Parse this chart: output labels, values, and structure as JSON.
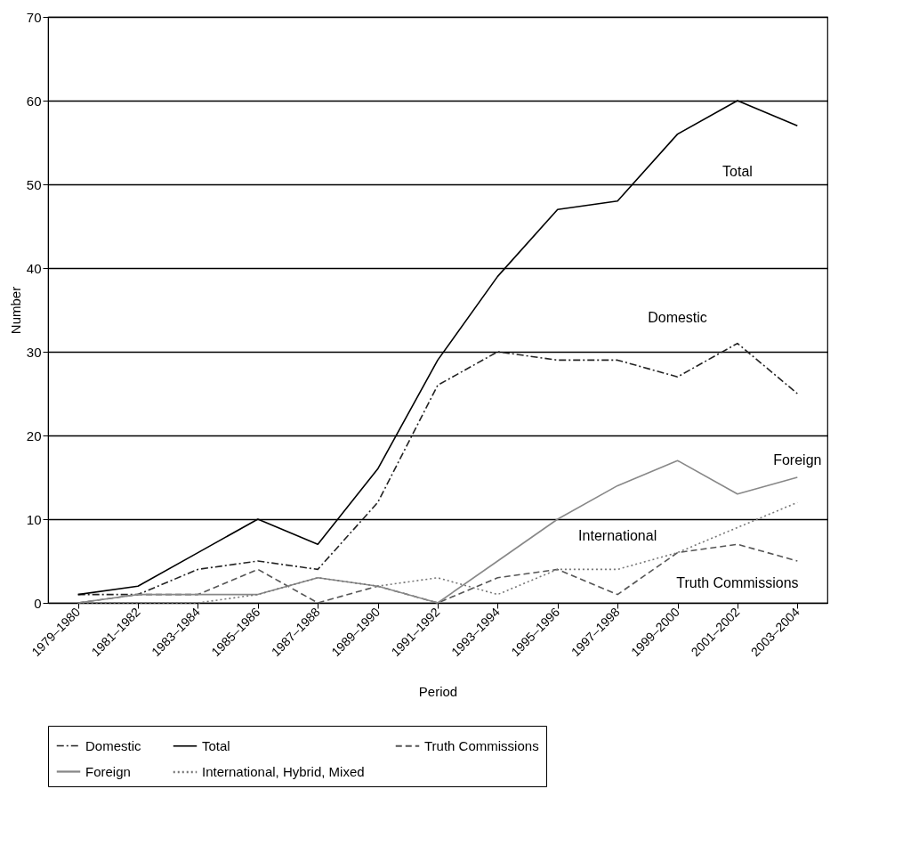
{
  "chart_data": {
    "type": "line",
    "xlabel": "Period",
    "ylabel": "Number",
    "categories": [
      "1979–1980",
      "1981–1982",
      "1983–1984",
      "1985–1986",
      "1987–1988",
      "1989–1990",
      "1991–1992",
      "1993–1994",
      "1995–1996",
      "1997–1998",
      "1999–2000",
      "2001–2002",
      "2003–2004"
    ],
    "series": [
      {
        "name": "Domestic",
        "color": "#222222",
        "line_style": "dashdot",
        "values": [
          1,
          1,
          4,
          5,
          4,
          12,
          26,
          30,
          29,
          29,
          27,
          31,
          25
        ]
      },
      {
        "name": "Total",
        "color": "#000000",
        "line_style": "solid",
        "values": [
          1,
          2,
          6,
          10,
          7,
          16,
          29,
          39,
          47,
          48,
          56,
          60,
          57
        ]
      },
      {
        "name": "Truth Commissions",
        "color": "#555555",
        "line_style": "dashed",
        "values": [
          0,
          1,
          1,
          4,
          0,
          2,
          0,
          3,
          4,
          1,
          6,
          7,
          5
        ]
      },
      {
        "name": "Foreign",
        "color": "#888888",
        "line_style": "solid",
        "values": [
          0,
          1,
          1,
          1,
          3,
          2,
          0,
          5,
          10,
          14,
          17,
          13,
          15
        ]
      },
      {
        "name": "International, Hybrid, Mixed",
        "color": "#777777",
        "line_style": "dotted",
        "values": [
          0,
          0,
          0,
          1,
          3,
          2,
          3,
          1,
          4,
          4,
          6,
          9,
          12
        ]
      }
    ],
    "ylim": [
      0,
      70
    ],
    "yticks": [
      0,
      10,
      20,
      30,
      40,
      50,
      60,
      70
    ],
    "grid": "y",
    "legend": "bottom",
    "annotations": [
      "Total",
      "Domestic",
      "Foreign",
      "International",
      "Truth Commissions"
    ]
  }
}
